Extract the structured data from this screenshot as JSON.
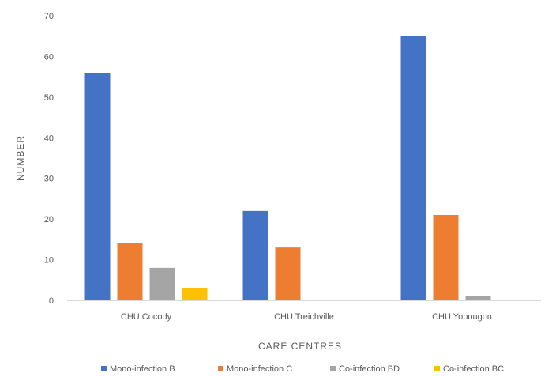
{
  "chart_data": {
    "type": "bar",
    "title": "",
    "xlabel": "CARE CENTRES",
    "ylabel": "NUMBER",
    "categories": [
      "CHU Cocody",
      "CHU Treichville",
      "CHU Yopougon"
    ],
    "series": [
      {
        "name": "Mono-infection B",
        "color": "#4472c4",
        "values": [
          56,
          22,
          65
        ]
      },
      {
        "name": "Mono-infection C",
        "color": "#ed7d31",
        "values": [
          14,
          13,
          21
        ]
      },
      {
        "name": "Co-infection BD",
        "color": "#a5a5a5",
        "values": [
          8,
          0,
          1
        ]
      },
      {
        "name": "Co-infection BC",
        "color": "#ffc000",
        "values": [
          3,
          0,
          0
        ]
      }
    ],
    "ylim": [
      0,
      70
    ],
    "yticks": [
      0,
      10,
      20,
      30,
      40,
      50,
      60,
      70
    ],
    "grid": false,
    "legend_position": "bottom"
  }
}
